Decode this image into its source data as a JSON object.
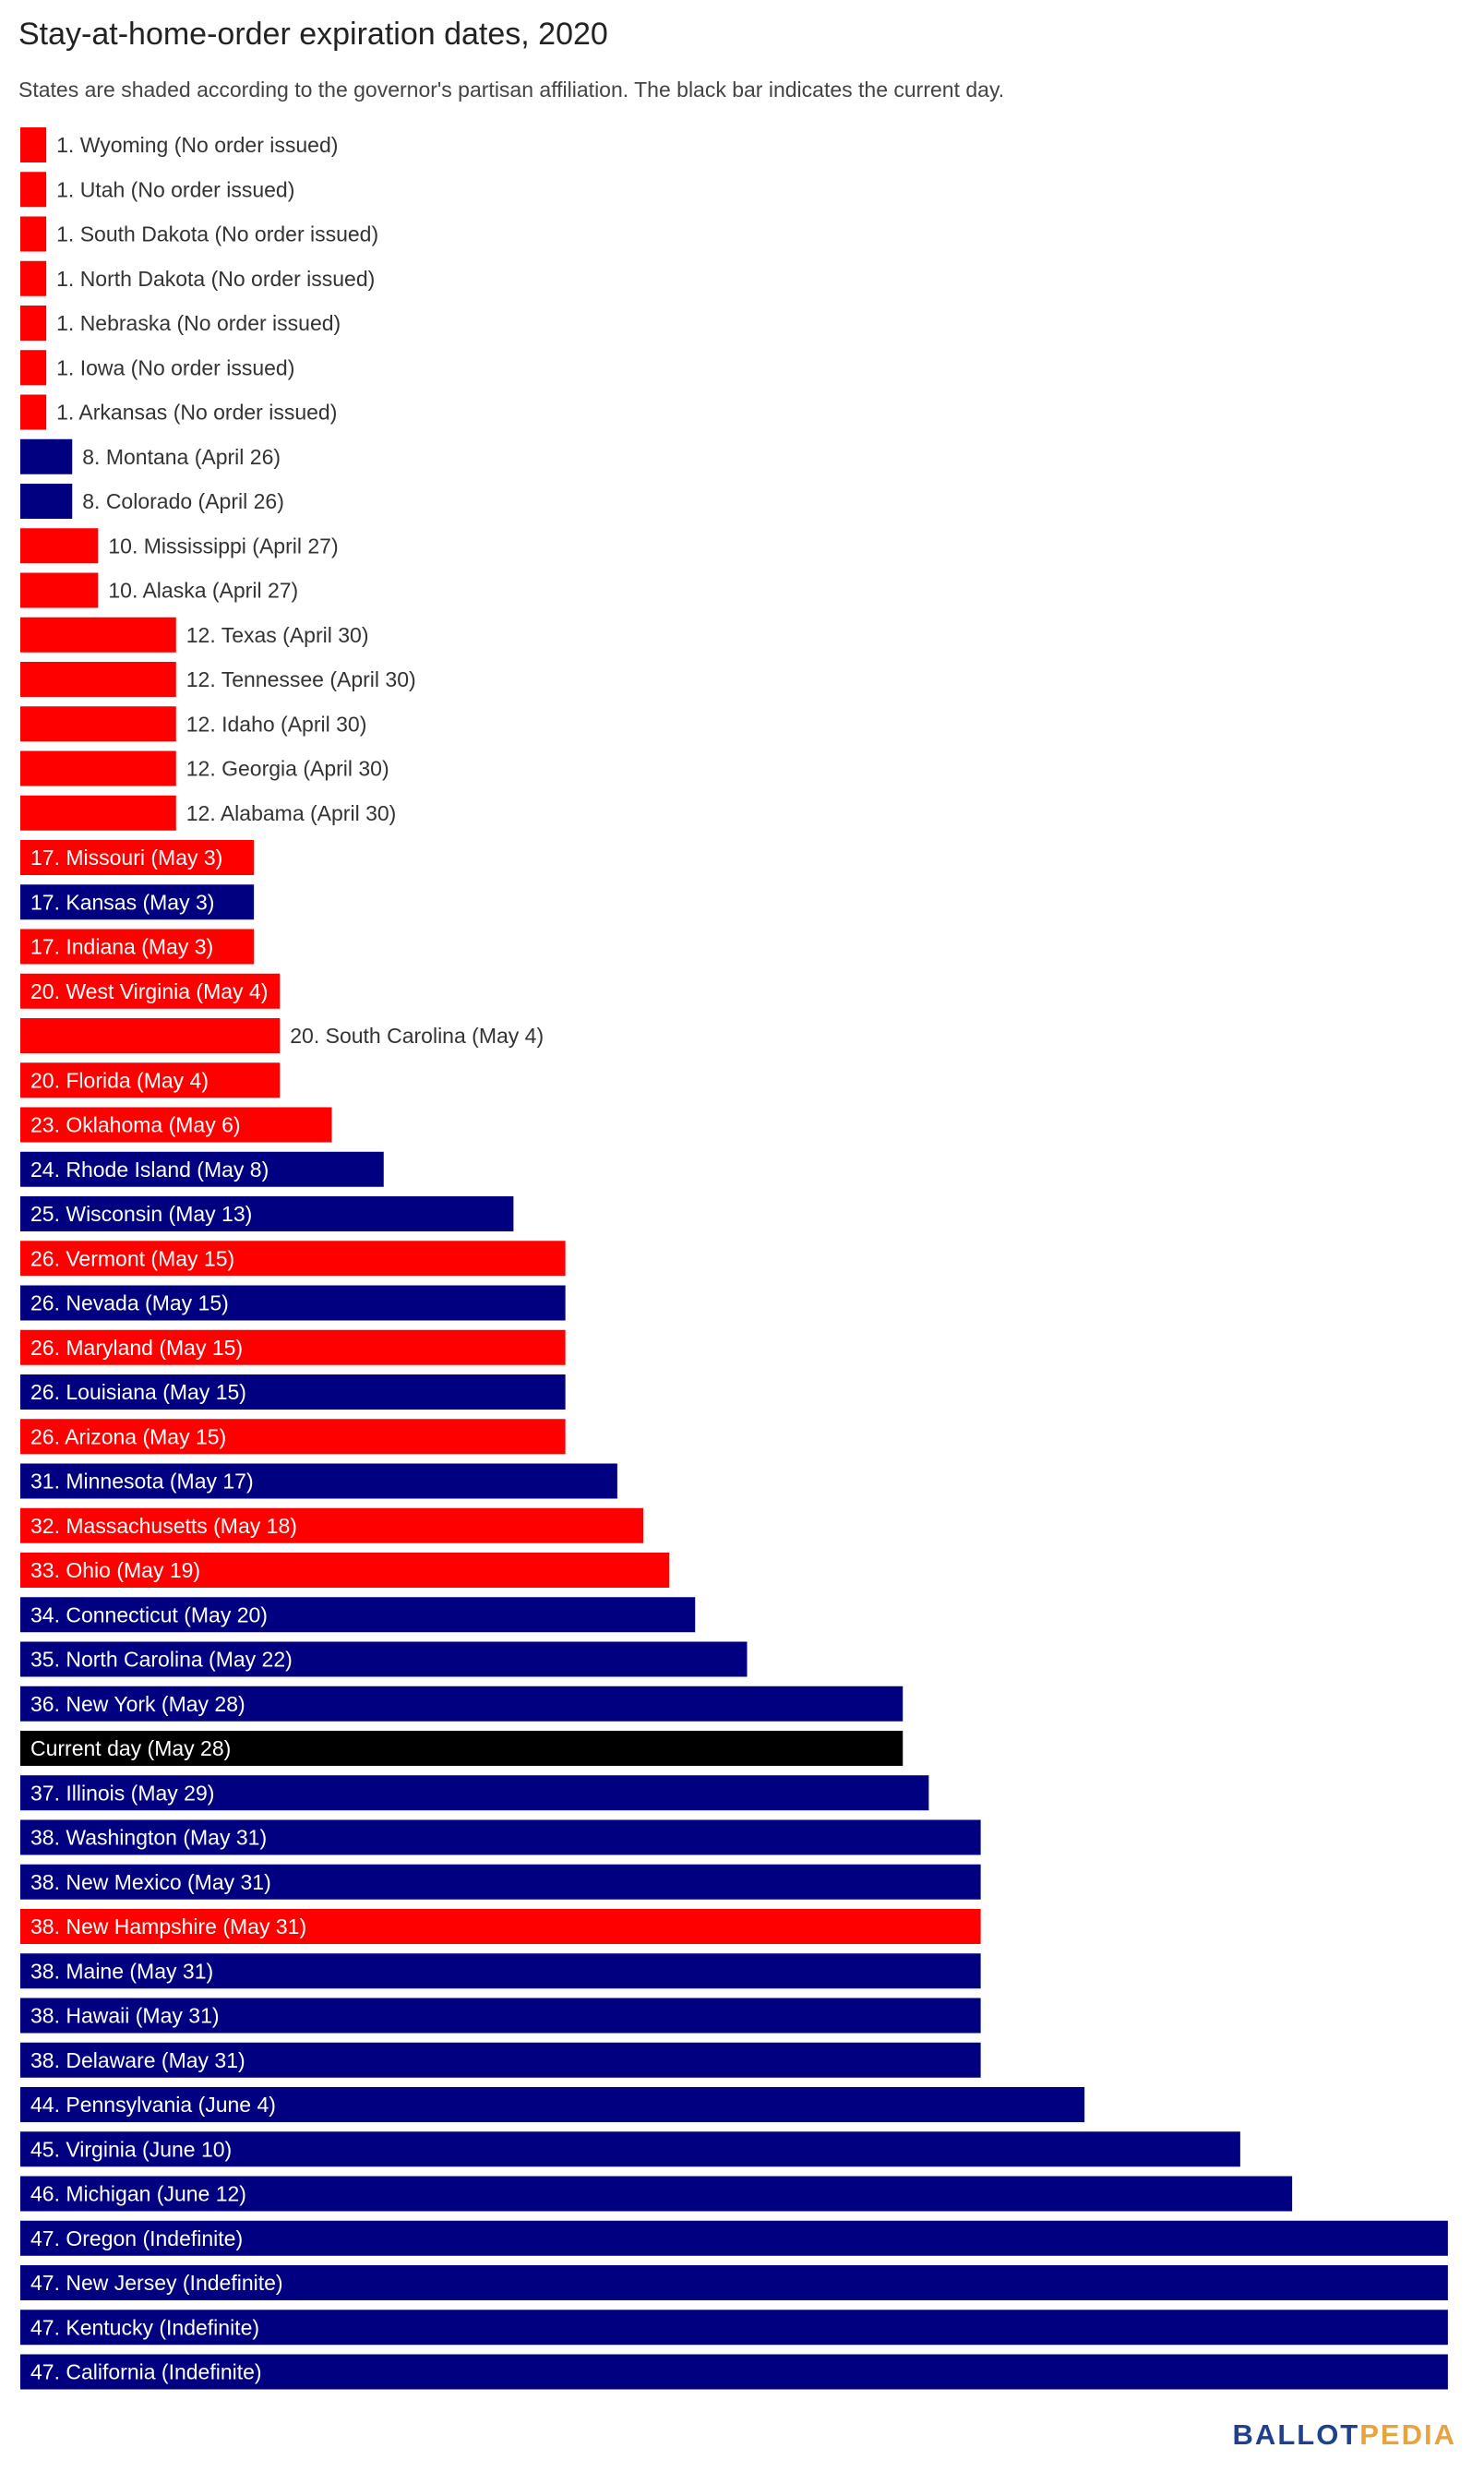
{
  "title": "Stay-at-home-order expiration dates, 2020",
  "subtitle": "States are shaded according to the governor's partisan affiliation. The black bar indicates the current day.",
  "logo": {
    "part1": "BALLOT",
    "part2": "PEDIA"
  },
  "colors": {
    "republican": "#ff0000",
    "democrat": "#000080",
    "current": "#000000",
    "label_dark": "#333333",
    "label_light": "#ffffff"
  },
  "chart_data": {
    "type": "bar",
    "orientation": "horizontal",
    "value_unit": "days after April 25, 2020",
    "xlim": [
      0,
      56
    ],
    "grid": false,
    "legend": "none",
    "bars": [
      {
        "label": "1. Wyoming (No order issued)",
        "value": 1,
        "party": "republican"
      },
      {
        "label": "1. Utah (No order issued)",
        "value": 1,
        "party": "republican"
      },
      {
        "label": "1. South Dakota (No order issued)",
        "value": 1,
        "party": "republican"
      },
      {
        "label": "1. North Dakota (No order issued)",
        "value": 1,
        "party": "republican"
      },
      {
        "label": "1. Nebraska (No order issued)",
        "value": 1,
        "party": "republican"
      },
      {
        "label": "1. Iowa (No order issued)",
        "value": 1,
        "party": "republican"
      },
      {
        "label": "1. Arkansas (No order issued)",
        "value": 1,
        "party": "republican"
      },
      {
        "label": "8. Montana (April 26)",
        "value": 2,
        "party": "democrat"
      },
      {
        "label": "8. Colorado (April 26)",
        "value": 2,
        "party": "democrat"
      },
      {
        "label": "10. Mississippi (April 27)",
        "value": 3,
        "party": "republican"
      },
      {
        "label": "10. Alaska (April 27)",
        "value": 3,
        "party": "republican"
      },
      {
        "label": "12. Texas (April 30)",
        "value": 6,
        "party": "republican"
      },
      {
        "label": "12. Tennessee (April 30)",
        "value": 6,
        "party": "republican"
      },
      {
        "label": "12. Idaho (April 30)",
        "value": 6,
        "party": "republican"
      },
      {
        "label": "12. Georgia (April 30)",
        "value": 6,
        "party": "republican"
      },
      {
        "label": "12. Alabama (April 30)",
        "value": 6,
        "party": "republican"
      },
      {
        "label": "17. Missouri (May 3)",
        "value": 9,
        "party": "republican"
      },
      {
        "label": "17. Kansas (May 3)",
        "value": 9,
        "party": "democrat"
      },
      {
        "label": "17. Indiana (May 3)",
        "value": 9,
        "party": "republican"
      },
      {
        "label": "20. West Virginia (May 4)",
        "value": 10,
        "party": "republican"
      },
      {
        "label": "20. South Carolina (May 4)",
        "value": 10,
        "party": "republican"
      },
      {
        "label": "20. Florida (May 4)",
        "value": 10,
        "party": "republican"
      },
      {
        "label": "23. Oklahoma (May 6)",
        "value": 12,
        "party": "republican"
      },
      {
        "label": "24. Rhode Island (May 8)",
        "value": 14,
        "party": "democrat"
      },
      {
        "label": "25. Wisconsin (May 13)",
        "value": 19,
        "party": "democrat"
      },
      {
        "label": "26. Vermont (May 15)",
        "value": 21,
        "party": "republican"
      },
      {
        "label": "26. Nevada (May 15)",
        "value": 21,
        "party": "democrat"
      },
      {
        "label": "26. Maryland (May 15)",
        "value": 21,
        "party": "republican"
      },
      {
        "label": "26. Louisiana (May 15)",
        "value": 21,
        "party": "democrat"
      },
      {
        "label": "26. Arizona (May 15)",
        "value": 21,
        "party": "republican"
      },
      {
        "label": "31. Minnesota (May 17)",
        "value": 23,
        "party": "democrat"
      },
      {
        "label": "32. Massachusetts (May 18)",
        "value": 24,
        "party": "republican"
      },
      {
        "label": "33. Ohio (May 19)",
        "value": 25,
        "party": "republican"
      },
      {
        "label": "34. Connecticut (May 20)",
        "value": 26,
        "party": "democrat"
      },
      {
        "label": "35. North Carolina (May 22)",
        "value": 28,
        "party": "democrat"
      },
      {
        "label": "36. New York (May 28)",
        "value": 34,
        "party": "democrat"
      },
      {
        "label": "Current day (May 28)",
        "value": 34,
        "party": "current"
      },
      {
        "label": "37. Illinois (May 29)",
        "value": 35,
        "party": "democrat"
      },
      {
        "label": "38. Washington (May 31)",
        "value": 37,
        "party": "democrat"
      },
      {
        "label": "38. New Mexico (May 31)",
        "value": 37,
        "party": "democrat"
      },
      {
        "label": "38. New Hampshire (May 31)",
        "value": 37,
        "party": "republican"
      },
      {
        "label": "38. Maine (May 31)",
        "value": 37,
        "party": "democrat"
      },
      {
        "label": "38. Hawaii (May 31)",
        "value": 37,
        "party": "democrat"
      },
      {
        "label": "38. Delaware (May 31)",
        "value": 37,
        "party": "democrat"
      },
      {
        "label": "44. Pennsylvania (June 4)",
        "value": 41,
        "party": "democrat"
      },
      {
        "label": "45. Virginia (June 10)",
        "value": 47,
        "party": "democrat"
      },
      {
        "label": "46. Michigan (June 12)",
        "value": 49,
        "party": "democrat"
      },
      {
        "label": "47. Oregon (Indefinite)",
        "value": 55,
        "party": "democrat"
      },
      {
        "label": "47. New Jersey (Indefinite)",
        "value": 55,
        "party": "democrat"
      },
      {
        "label": "47. Kentucky (Indefinite)",
        "value": 55,
        "party": "democrat"
      },
      {
        "label": "47. California (Indefinite)",
        "value": 55,
        "party": "democrat"
      }
    ]
  }
}
